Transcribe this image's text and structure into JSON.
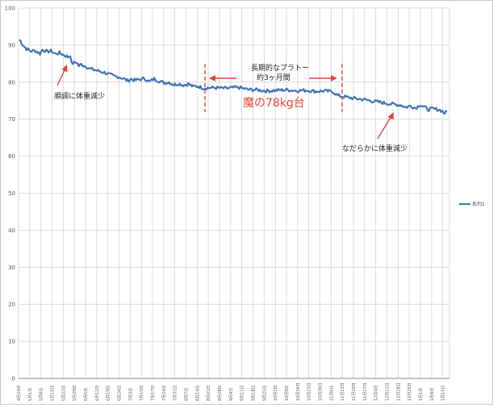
{
  "chart_data": {
    "type": "line",
    "ylim": [
      0,
      100
    ],
    "yticks": [
      0,
      10,
      20,
      30,
      40,
      50,
      60,
      70,
      80,
      90,
      100
    ],
    "grid": true,
    "legend": "right",
    "x_labels": [
      "4月24日",
      "5月1日",
      "5月8日",
      "5月15日",
      "5月22日",
      "5月29日",
      "6月5日",
      "6月12日",
      "6月19日",
      "6月26日",
      "7月3日",
      "7月10日",
      "7月17日",
      "7月24日",
      "7月31日",
      "8月7日",
      "8月14日",
      "8月21日",
      "8月28日",
      "9月4日",
      "9月11日",
      "9月18日",
      "9月25日",
      "10月2日",
      "10月9日",
      "10月16日",
      "10月23日",
      "10月30日",
      "11月6日",
      "11月13日",
      "11月20日",
      "11月27日",
      "12月4日",
      "12月11日",
      "12月18日",
      "12月25日",
      "1月1日",
      "1月8日",
      "1月15日"
    ],
    "series": [
      {
        "name": "系列1",
        "color": "#3f73b5",
        "anchors": [
          [
            0,
            91.5
          ],
          [
            4,
            89.6
          ],
          [
            6,
            89.0
          ],
          [
            9,
            88.4
          ],
          [
            13,
            88.5
          ],
          [
            17,
            87.7
          ],
          [
            19,
            88.8
          ],
          [
            23,
            88.2
          ],
          [
            26,
            88.4
          ],
          [
            30,
            87.6
          ],
          [
            33,
            87.9
          ],
          [
            40,
            86.8
          ],
          [
            42,
            87.3
          ],
          [
            43,
            85.0
          ],
          [
            47,
            85.4
          ],
          [
            49,
            84.4
          ],
          [
            51,
            84.8
          ],
          [
            55,
            84.2
          ],
          [
            58,
            83.6
          ],
          [
            62,
            83.3
          ],
          [
            66,
            82.9
          ],
          [
            70,
            82.6
          ],
          [
            74,
            82.1
          ],
          [
            78,
            81.6
          ],
          [
            82,
            81.4
          ],
          [
            86,
            80.9
          ],
          [
            89,
            80.4
          ],
          [
            92,
            80.8
          ],
          [
            95,
            80.5
          ],
          [
            99,
            80.7
          ],
          [
            103,
            81.0
          ],
          [
            107,
            80.1
          ],
          [
            111,
            80.9
          ],
          [
            115,
            80.3
          ],
          [
            119,
            79.8
          ],
          [
            123,
            80.0
          ],
          [
            127,
            79.3
          ],
          [
            131,
            79.6
          ],
          [
            135,
            79.2
          ],
          [
            139,
            79.5
          ],
          [
            143,
            78.8
          ],
          [
            147,
            78.9
          ],
          [
            151,
            78.4
          ],
          [
            160,
            78.5
          ],
          [
            170,
            78.3
          ],
          [
            180,
            78.6
          ],
          [
            188,
            78.0
          ],
          [
            196,
            77.9
          ],
          [
            204,
            77.6
          ],
          [
            212,
            77.8
          ],
          [
            220,
            77.9
          ],
          [
            228,
            77.7
          ],
          [
            236,
            77.8
          ],
          [
            244,
            77.5
          ],
          [
            252,
            77.6
          ],
          [
            258,
            77.4
          ],
          [
            262,
            76.4
          ],
          [
            266,
            76.1
          ],
          [
            272,
            75.8
          ],
          [
            278,
            75.5
          ],
          [
            284,
            75.3
          ],
          [
            290,
            74.9
          ],
          [
            296,
            74.6
          ],
          [
            302,
            74.3
          ],
          [
            308,
            74.0
          ],
          [
            314,
            73.8
          ],
          [
            318,
            73.2
          ],
          [
            322,
            73.6
          ],
          [
            326,
            73.0
          ],
          [
            330,
            73.9
          ],
          [
            334,
            73.1
          ],
          [
            337,
            72.6
          ],
          [
            340,
            72.8
          ],
          [
            345,
            72.6
          ],
          [
            348,
            72.2
          ],
          [
            350,
            71.6
          ],
          [
            352,
            72.0
          ]
        ],
        "n_points": 353,
        "jitter": 0.45
      }
    ]
  },
  "annotations": {
    "left": "順調に体重減少",
    "plateau_line1": "長期的なプラトー",
    "plateau_line2": "約3ヶ月間",
    "plateau_big": "魔の78kg台",
    "right": "なだらかに体重減少"
  }
}
